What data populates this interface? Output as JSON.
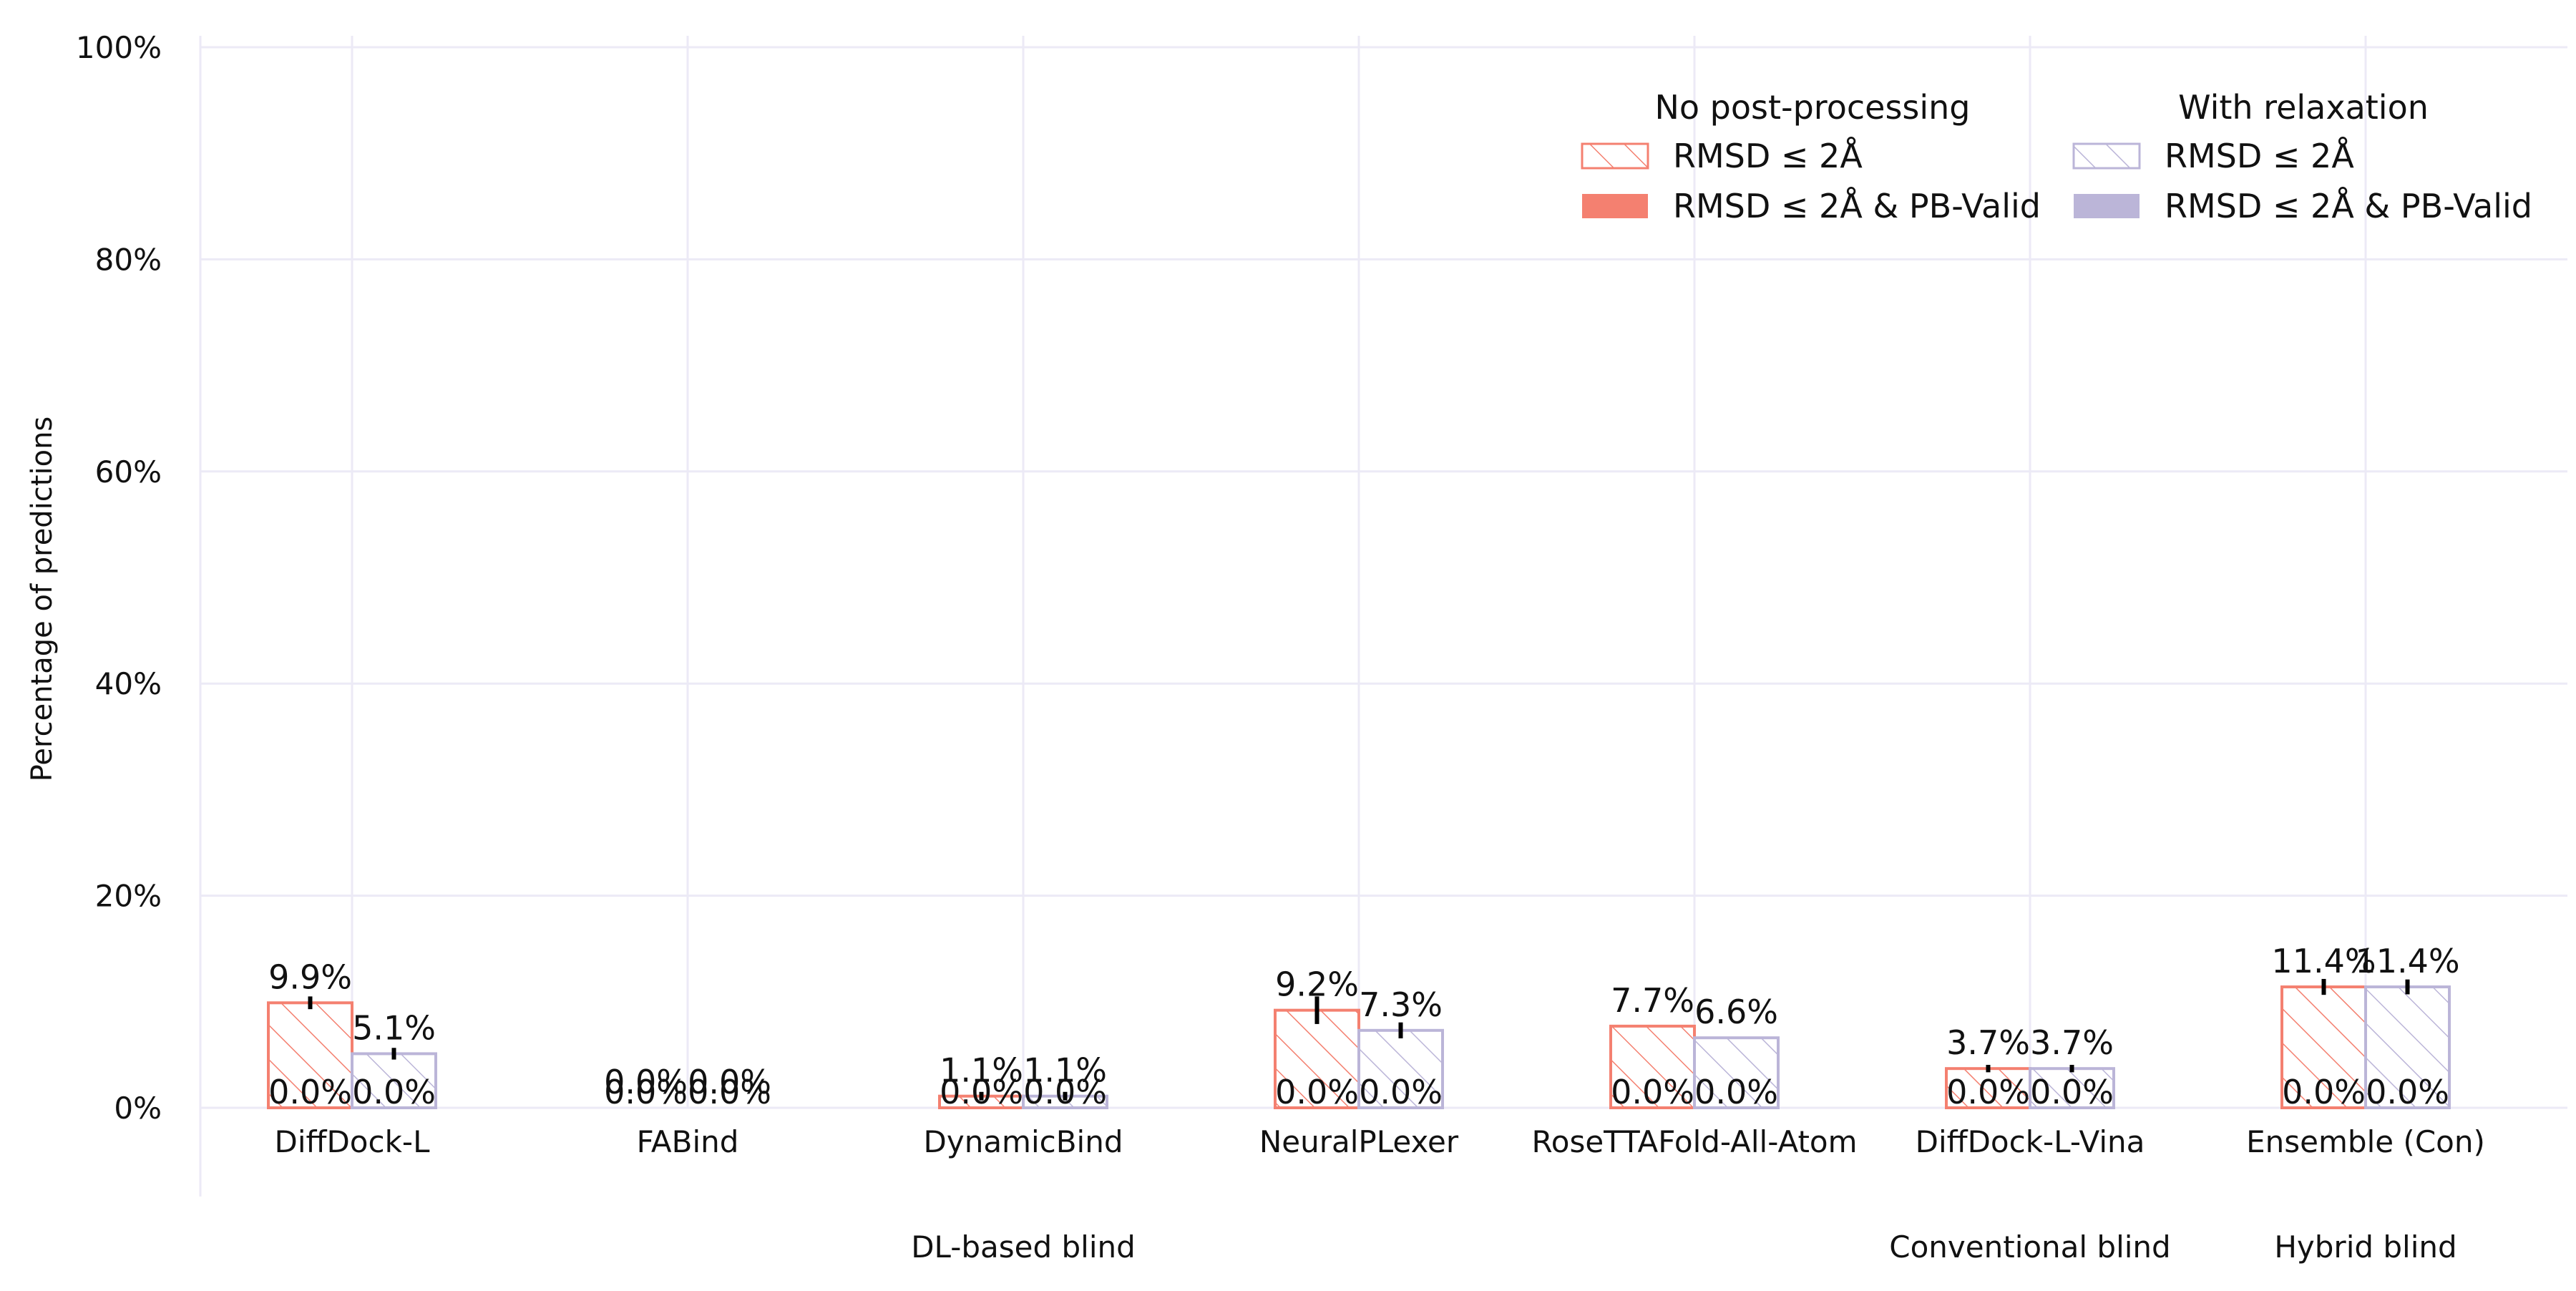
{
  "chart_data": {
    "type": "bar",
    "ylabel": "Percentage of predictions",
    "xlabel": "",
    "ylim": [
      0,
      100
    ],
    "y_ticks": [
      "0%",
      "20%",
      "40%",
      "60%",
      "80%",
      "100%"
    ],
    "grid": true,
    "legend_position": "top-right",
    "categories": [
      "DiffDock-L",
      "FABind",
      "DynamicBind",
      "NeuralPLexer",
      "RoseTTAFold-All-Atom",
      "DiffDock-L-Vina",
      "Ensemble (Con)"
    ],
    "category_groups": [
      {
        "label": "DL-based blind",
        "categories": [
          "DiffDock-L",
          "FABind",
          "DynamicBind",
          "NeuralPLexer",
          "RoseTTAFold-All-Atom"
        ]
      },
      {
        "label": "Conventional blind",
        "categories": [
          "DiffDock-L-Vina"
        ]
      },
      {
        "label": "Hybrid blind",
        "categories": [
          "Ensemble (Con)"
        ]
      }
    ],
    "legend": {
      "groups": [
        {
          "title": "No post-processing",
          "entries": [
            "RMSD ≤ 2Å",
            "RMSD ≤ 2Å & PB-Valid"
          ],
          "color": "#f48070"
        },
        {
          "title": "With relaxation",
          "entries": [
            "RMSD ≤ 2Å",
            "RMSD ≤ 2Å & PB-Valid"
          ],
          "color": "#bbb5d8"
        }
      ]
    },
    "series": [
      {
        "name": "RMSD ≤ 2Å",
        "group": "No post-processing",
        "style": "hatched",
        "color": "#f48070",
        "values": [
          9.9,
          0.0,
          1.1,
          9.2,
          7.7,
          3.7,
          11.4
        ],
        "labels": [
          "9.9%",
          "0.0%",
          "1.1%",
          "9.2%",
          "7.7%",
          "3.7%",
          "11.4%"
        ],
        "err": [
          1.2,
          0,
          0.8,
          2.6,
          0,
          0.7,
          1.5
        ]
      },
      {
        "name": "RMSD ≤ 2Å & PB-Valid",
        "group": "No post-processing",
        "style": "solid",
        "color": "#f48070",
        "values": [
          0.0,
          0.0,
          0.0,
          0.0,
          0.0,
          0.0,
          0.0
        ],
        "labels": [
          "0.0%",
          "0.0%",
          "0.0%",
          "0.0%",
          "0.0%",
          "0.0%",
          "0.0%"
        ]
      },
      {
        "name": "RMSD ≤ 2Å",
        "group": "With relaxation",
        "style": "hatched",
        "color": "#bbb5d8",
        "values": [
          5.1,
          0.0,
          1.1,
          7.3,
          6.6,
          3.7,
          11.4
        ],
        "labels": [
          "5.1%",
          "0.0%",
          "1.1%",
          "7.3%",
          "6.6%",
          "3.7%",
          "11.4%"
        ],
        "err": [
          1.1,
          0,
          0.8,
          1.5,
          0,
          0.7,
          1.4
        ]
      },
      {
        "name": "RMSD ≤ 2Å & PB-Valid",
        "group": "With relaxation",
        "style": "solid",
        "color": "#bbb5d8",
        "values": [
          0.0,
          0.0,
          0.0,
          0.0,
          0.0,
          0.0,
          0.0
        ],
        "labels": [
          "0.0%",
          "0.0%",
          "0.0%",
          "0.0%",
          "0.0%",
          "0.0%",
          "0.0%"
        ]
      }
    ]
  }
}
